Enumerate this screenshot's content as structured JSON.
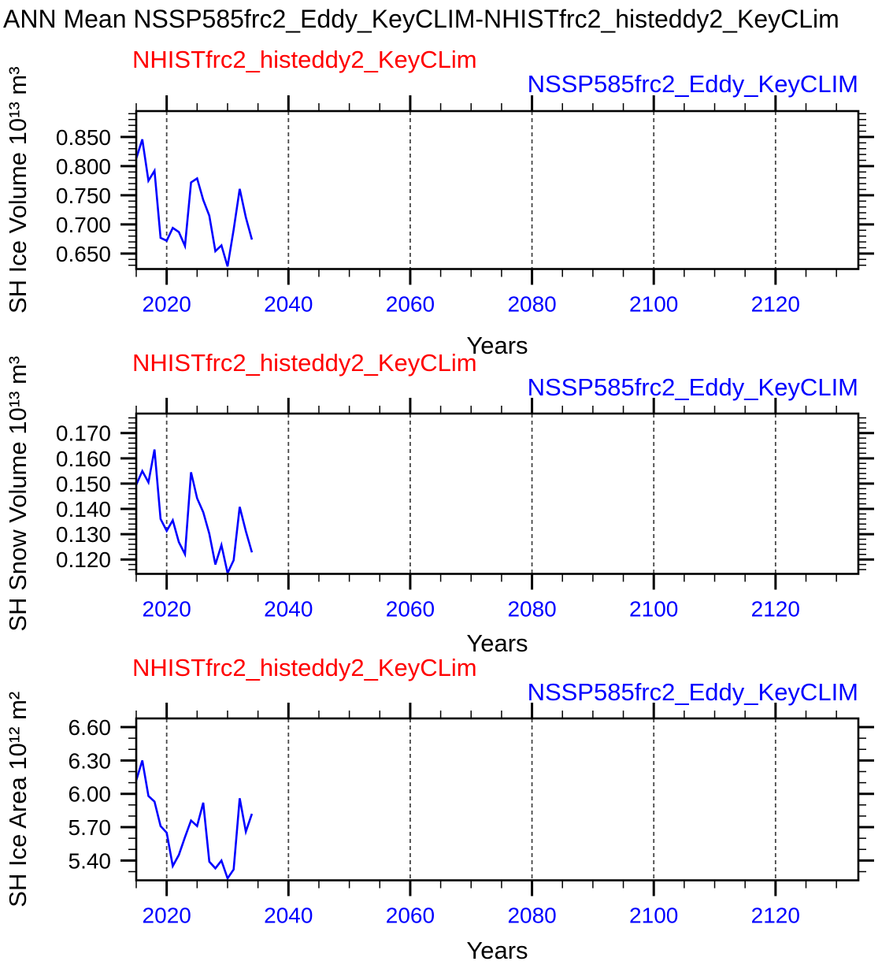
{
  "title": "ANN Mean NSSP585frc2_Eddy_KeyCLIM-NHISTfrc2_histeddy2_KeyCLim",
  "colors": {
    "line": "#0000ff",
    "legend_left": "#ff0000",
    "legend_right": "#0000ff",
    "xtick_label": "#0000ff",
    "ytick_label": "#000000",
    "gridline": "#474747",
    "frame": "#000000"
  },
  "chart_data": [
    {
      "type": "line",
      "panel": "sh-ice-volume",
      "ylabel": "SH Ice Volume 10¹³ m³",
      "xlabel": "Years",
      "legend_left": {
        "label": "NHISTfrc2_histeddy2_KeyCLim",
        "color": "#ff0000"
      },
      "legend_right": {
        "label": "NSSP585frc2_Eddy_KeyCLIM",
        "color": "#0000ff"
      },
      "xlim": [
        2015,
        2133.6
      ],
      "ylim": [
        0.6235,
        0.8945
      ],
      "xticks": [
        2020,
        2040,
        2060,
        2080,
        2100,
        2120
      ],
      "xtick_labels": [
        "2020",
        "2040",
        "2060",
        "2080",
        "2100",
        "2120"
      ],
      "xminor_step": 5,
      "yticks": [
        0.65,
        0.7,
        0.75,
        0.8,
        0.85
      ],
      "ytick_labels": [
        "0.650",
        "0.700",
        "0.750",
        "0.800",
        "0.850"
      ],
      "yminor_step": 0.01,
      "grid_x": true,
      "series": [
        {
          "name": "NSSP585frc2_Eddy_KeyCLIM",
          "color": "#0000ff",
          "x": [
            2015,
            2016,
            2017,
            2018,
            2019,
            2020,
            2021,
            2022,
            2023,
            2024,
            2025,
            2026,
            2027,
            2028,
            2029,
            2030,
            2031,
            2032,
            2033,
            2034
          ],
          "values": [
            0.813,
            0.846,
            0.775,
            0.792,
            0.677,
            0.672,
            0.694,
            0.687,
            0.663,
            0.772,
            0.779,
            0.742,
            0.715,
            0.654,
            0.664,
            0.628,
            0.691,
            0.761,
            0.712,
            0.674
          ]
        }
      ]
    },
    {
      "type": "line",
      "panel": "sh-snow-volume",
      "ylabel": "SH Snow Volume 10¹³ m³",
      "xlabel": "Years",
      "legend_left": {
        "label": "NHISTfrc2_histeddy2_KeyCLim",
        "color": "#ff0000"
      },
      "legend_right": {
        "label": "NSSP585frc2_Eddy_KeyCLIM",
        "color": "#0000ff"
      },
      "xlim": [
        2015,
        2133.6
      ],
      "ylim": [
        0.1143,
        0.1777
      ],
      "xticks": [
        2020,
        2040,
        2060,
        2080,
        2100,
        2120
      ],
      "xtick_labels": [
        "2020",
        "2040",
        "2060",
        "2080",
        "2100",
        "2120"
      ],
      "xminor_step": 5,
      "yticks": [
        0.12,
        0.13,
        0.14,
        0.15,
        0.16,
        0.17
      ],
      "ytick_labels": [
        "0.120",
        "0.130",
        "0.140",
        "0.150",
        "0.160",
        "0.170"
      ],
      "yminor_step": 0.002,
      "grid_x": true,
      "series": [
        {
          "name": "NSSP585frc2_Eddy_KeyCLIM",
          "color": "#0000ff",
          "x": [
            2015,
            2016,
            2017,
            2018,
            2019,
            2020,
            2021,
            2022,
            2023,
            2024,
            2025,
            2026,
            2027,
            2028,
            2029,
            2030,
            2031,
            2032,
            2033,
            2034
          ],
          "values": [
            0.1495,
            0.155,
            0.1505,
            0.1635,
            0.136,
            0.1313,
            0.1355,
            0.1269,
            0.1221,
            0.1545,
            0.1442,
            0.1387,
            0.1302,
            0.118,
            0.1257,
            0.1146,
            0.1197,
            0.1408,
            0.1312,
            0.1228
          ]
        }
      ]
    },
    {
      "type": "line",
      "panel": "sh-ice-area",
      "ylabel": "SH Ice Area 10¹² m²",
      "xlabel": "Years",
      "legend_left": {
        "label": "NHISTfrc2_histeddy2_KeyCLim",
        "color": "#ff0000"
      },
      "legend_right": {
        "label": "NSSP585frc2_Eddy_KeyCLIM",
        "color": "#0000ff"
      },
      "xlim": [
        2015,
        2133.6
      ],
      "ylim": [
        5.222,
        6.678
      ],
      "xticks": [
        2020,
        2040,
        2060,
        2080,
        2100,
        2120
      ],
      "xtick_labels": [
        "2020",
        "2040",
        "2060",
        "2080",
        "2100",
        "2120"
      ],
      "xminor_step": 5,
      "yticks": [
        5.4,
        5.7,
        6.0,
        6.3,
        6.6
      ],
      "ytick_labels": [
        "5.40",
        "5.70",
        "6.00",
        "6.30",
        "6.60"
      ],
      "yminor_step": 0.1,
      "grid_x": true,
      "series": [
        {
          "name": "NSSP585frc2_Eddy_KeyCLIM",
          "color": "#0000ff",
          "x": [
            2015,
            2016,
            2017,
            2018,
            2019,
            2020,
            2021,
            2022,
            2023,
            2024,
            2025,
            2026,
            2027,
            2028,
            2029,
            2030,
            2031,
            2032,
            2033,
            2034
          ],
          "values": [
            6.12,
            6.3,
            5.98,
            5.93,
            5.71,
            5.65,
            5.35,
            5.45,
            5.61,
            5.76,
            5.71,
            5.92,
            5.39,
            5.33,
            5.4,
            5.24,
            5.32,
            5.96,
            5.66,
            5.82
          ]
        }
      ]
    }
  ]
}
